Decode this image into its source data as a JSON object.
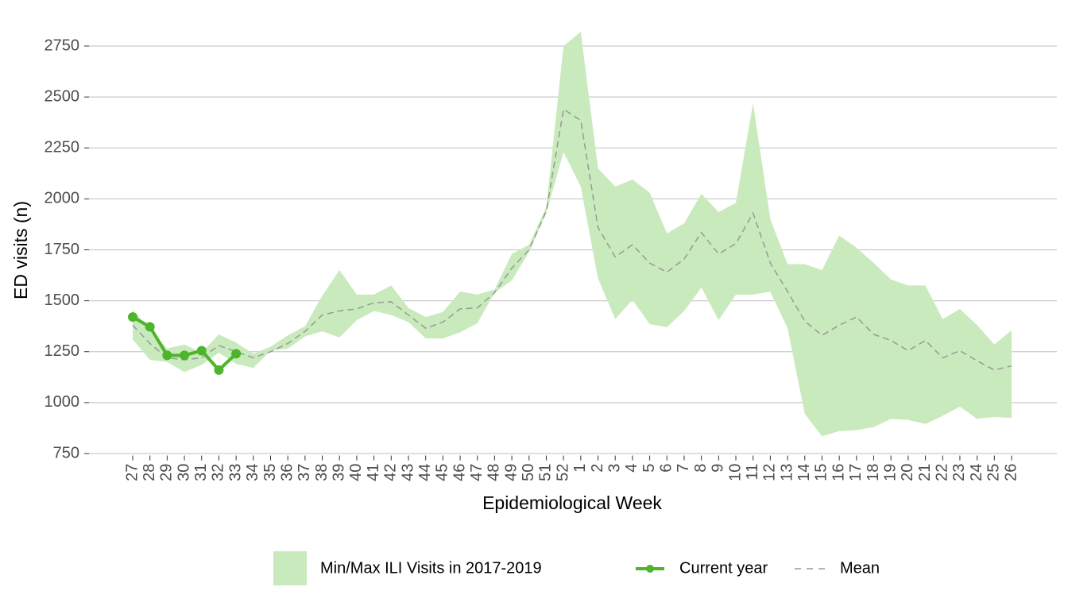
{
  "chart_data": {
    "type": "line",
    "x_label": "Epidemiological Week",
    "y_label": "ED visits (n)",
    "categories": [
      "27",
      "28",
      "29",
      "30",
      "31",
      "32",
      "33",
      "34",
      "35",
      "36",
      "37",
      "38",
      "39",
      "40",
      "41",
      "42",
      "43",
      "44",
      "45",
      "46",
      "47",
      "48",
      "49",
      "50",
      "51",
      "52",
      "1",
      "2",
      "3",
      "4",
      "5",
      "6",
      "7",
      "8",
      "9",
      "10",
      "11",
      "12",
      "13",
      "14",
      "15",
      "16",
      "17",
      "18",
      "19",
      "20",
      "21",
      "22",
      "23",
      "24",
      "25",
      "26"
    ],
    "ylim": [
      740,
      2830
    ],
    "yticks": [
      750,
      1000,
      1250,
      1500,
      1750,
      2000,
      2250,
      2500,
      2750
    ],
    "grid": true,
    "legend": "bottom",
    "series": [
      {
        "name": "Min/Max ILI Visits in 2017-2019",
        "kind": "band",
        "color": "#c9eabc",
        "lower": [
          1310,
          1210,
          1200,
          1150,
          1185,
          1245,
          1190,
          1170,
          1255,
          1265,
          1325,
          1350,
          1320,
          1405,
          1450,
          1430,
          1395,
          1315,
          1315,
          1345,
          1390,
          1540,
          1600,
          1740,
          1930,
          2230,
          2060,
          1610,
          1410,
          1505,
          1385,
          1370,
          1450,
          1565,
          1405,
          1530,
          1530,
          1545,
          1365,
          945,
          835,
          860,
          865,
          880,
          920,
          915,
          895,
          935,
          980,
          920,
          930,
          925
        ],
        "upper": [
          1455,
          1360,
          1265,
          1285,
          1245,
          1335,
          1295,
          1240,
          1275,
          1330,
          1375,
          1525,
          1650,
          1530,
          1530,
          1575,
          1465,
          1420,
          1445,
          1545,
          1530,
          1555,
          1730,
          1775,
          1960,
          2750,
          2820,
          2150,
          2060,
          2095,
          2030,
          1830,
          1880,
          2025,
          1935,
          1980,
          2470,
          1900,
          1680,
          1680,
          1650,
          1820,
          1760,
          1685,
          1605,
          1575,
          1575,
          1410,
          1460,
          1380,
          1285,
          1355
        ]
      },
      {
        "name": "Current year",
        "kind": "points",
        "color": "#4cb52a",
        "values": [
          1420,
          1372,
          1232,
          1232,
          1255,
          1160,
          1240,
          null,
          null,
          null,
          null,
          null,
          null,
          null,
          null,
          null,
          null,
          null,
          null,
          null,
          null,
          null,
          null,
          null,
          null,
          null,
          null,
          null,
          null,
          null,
          null,
          null,
          null,
          null,
          null,
          null,
          null,
          null,
          null,
          null,
          null,
          null,
          null,
          null,
          null,
          null,
          null,
          null,
          null,
          null,
          null,
          null
        ]
      },
      {
        "name": "Mean",
        "kind": "dashed",
        "color": "#999999",
        "values": [
          1380,
          1290,
          1220,
          1210,
          1220,
          1280,
          1250,
          1220,
          1250,
          1290,
          1350,
          1430,
          1450,
          1460,
          1490,
          1495,
          1430,
          1365,
          1395,
          1460,
          1465,
          1540,
          1660,
          1750,
          1940,
          2440,
          2385,
          1860,
          1715,
          1775,
          1685,
          1640,
          1705,
          1835,
          1730,
          1780,
          1930,
          1685,
          1545,
          1400,
          1330,
          1380,
          1420,
          1335,
          1305,
          1255,
          1305,
          1220,
          1255,
          1205,
          1160,
          1180
        ]
      }
    ]
  }
}
